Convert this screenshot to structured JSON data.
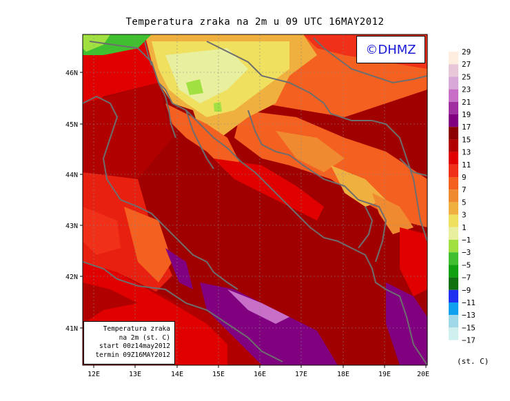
{
  "title": "Temperatura zraka na 2m u 09 UTC 16MAY2012",
  "logo_text": "©DHMZ",
  "info_box": {
    "line1": "Temperatura zraka",
    "line2": "na 2m (st. C)",
    "line3": "start 00z14may2012",
    "line4": "termin 09Z16MAY2012"
  },
  "lon_labels": [
    "12E",
    "13E",
    "14E",
    "15E",
    "16E",
    "17E",
    "18E",
    "19E",
    "20E"
  ],
  "lat_labels": [
    "41N",
    "42N",
    "43N",
    "44N",
    "45N",
    "46N"
  ],
  "legend": {
    "unit": "(st. C)",
    "levels": [
      "29",
      "27",
      "25",
      "23",
      "21",
      "19",
      "17",
      "15",
      "13",
      "11",
      "9",
      "7",
      "5",
      "3",
      "1",
      "−1",
      "−3",
      "−5",
      "−7",
      "−9",
      "−11",
      "−13",
      "−15",
      "−17"
    ],
    "colors": [
      "#fdeee0",
      "#e8c8d8",
      "#d8a8d8",
      "#c870c8",
      "#a030a0",
      "#800080",
      "#8b0000",
      "#b00000",
      "#e00000",
      "#f03018",
      "#f46020",
      "#f08a30",
      "#f0b040",
      "#f0e060",
      "#e8f0a0",
      "#a0e040",
      "#40c030",
      "#10a010",
      "#107010",
      "#2030f0",
      "#10a0f0",
      "#a0d8e8",
      "#d0f0f0",
      "#ffffff"
    ]
  }
}
